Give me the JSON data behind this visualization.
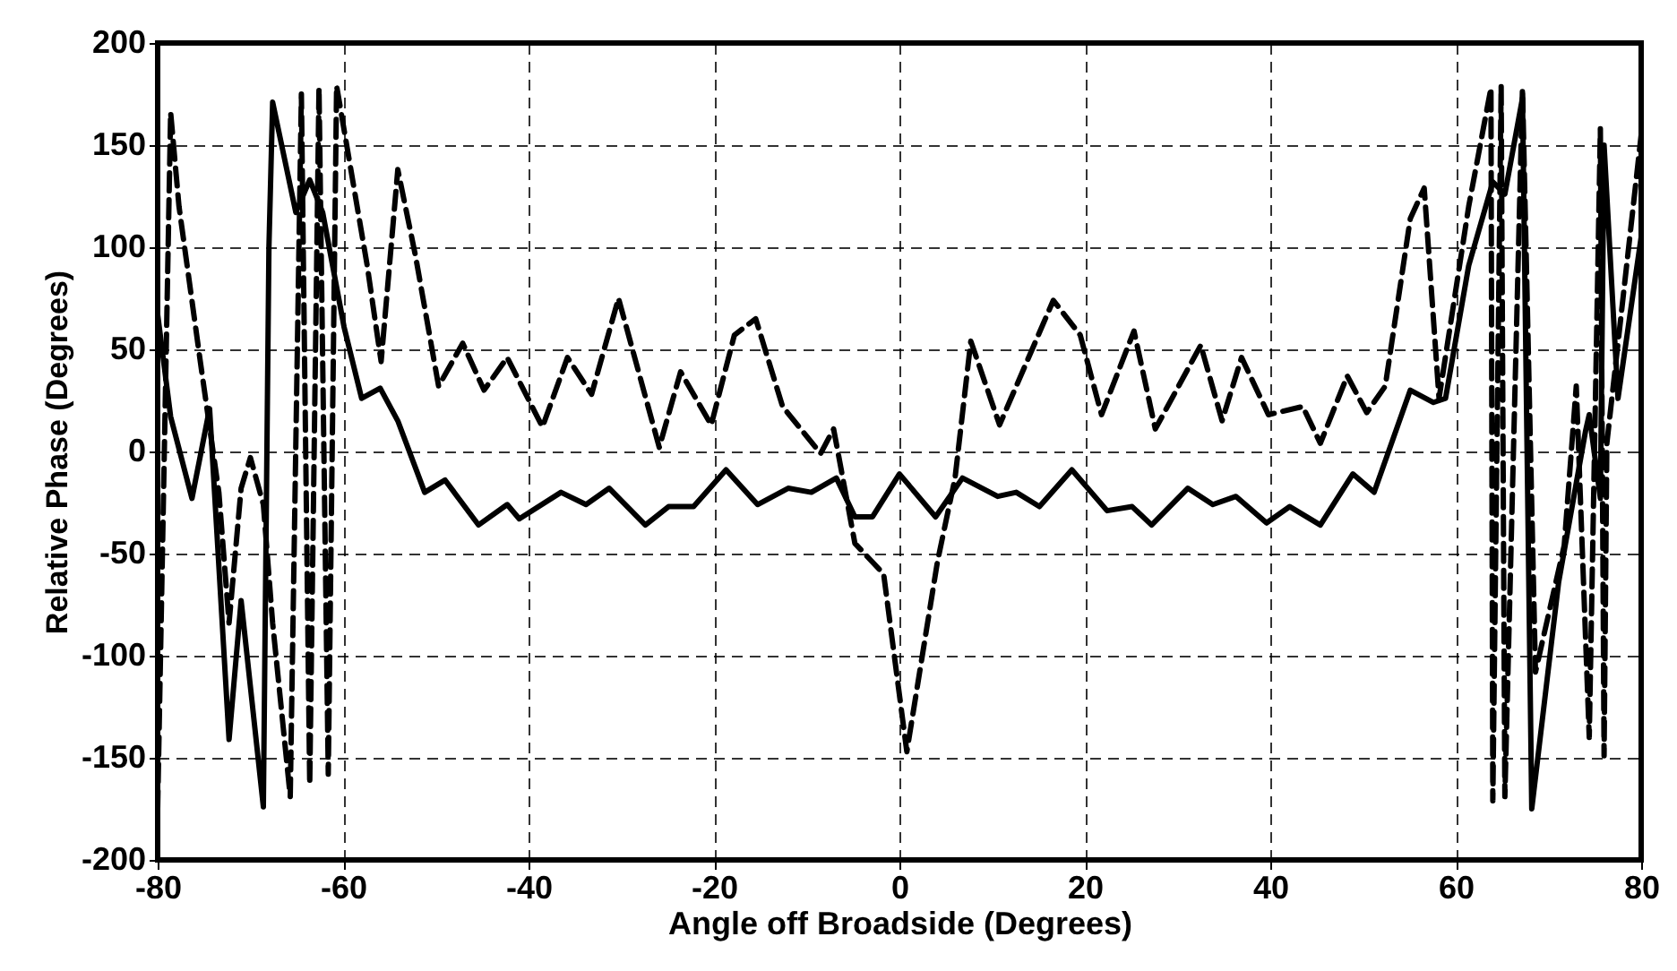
{
  "chart_data": {
    "type": "line",
    "xlabel": "Angle off Broadside (Degrees)",
    "ylabel": "Relative Phase (Degrees)",
    "xlim": [
      -80,
      80
    ],
    "ylim": [
      -200,
      200
    ],
    "xticks": [
      -80,
      -60,
      -40,
      -20,
      0,
      20,
      40,
      60,
      80
    ],
    "yticks": [
      -200,
      -150,
      -100,
      -50,
      0,
      50,
      100,
      150,
      200
    ],
    "grid": true,
    "series": [
      {
        "color": "#000000",
        "line_style": "solid",
        "x": [
          -80,
          -78.6,
          -76.3,
          -74.4,
          -72.3,
          -71,
          -68.6,
          -68,
          -67.6,
          -65.1,
          -63.6,
          -62.2,
          -59.9,
          -58,
          -56,
          -54.1,
          -51.2,
          -49,
          -45.4,
          -42.3,
          -41,
          -36.5,
          -33.8,
          -31.3,
          -27.4,
          -24.9,
          -22.2,
          -18.7,
          -15.3,
          -12,
          -9.5,
          -6.8,
          -4.8,
          -2.9,
          0,
          3.9,
          6.8,
          10.6,
          12.6,
          15.1,
          18.6,
          22.4,
          25.1,
          27.2,
          31.1,
          33.8,
          36.3,
          39.6,
          42.1,
          45.4,
          48.9,
          51.2,
          55.1,
          57.6,
          58.9,
          61.4,
          64,
          65.3,
          67.2,
          68.2,
          71.1,
          74,
          74.4,
          75.6,
          76,
          77.5,
          80
        ],
        "values": [
          67,
          17,
          -23,
          21,
          -141,
          -73,
          -174,
          100,
          171,
          117,
          133,
          117,
          61,
          26,
          31,
          15,
          -20,
          -14,
          -36,
          -26,
          -33,
          -20,
          -26,
          -18,
          -36,
          -27,
          -27,
          -9,
          -26,
          -18,
          -20,
          -13,
          -32,
          -32,
          -11,
          -32,
          -13,
          -22,
          -20,
          -27,
          -9,
          -29,
          -27,
          -36,
          -18,
          -26,
          -22,
          -35,
          -27,
          -36,
          -11,
          -20,
          30,
          24,
          26,
          91,
          132,
          126,
          173,
          -175,
          -64,
          10,
          18,
          -23,
          150,
          26,
          105
        ]
      },
      {
        "color": "#000000",
        "line_style": "dashed",
        "x": [
          -80,
          -78.6,
          -77.7,
          -75.4,
          -73.4,
          -72.3,
          -71,
          -70,
          -68.6,
          -67.6,
          -65.7,
          -64.5,
          -63.6,
          -62.6,
          -61.6,
          -60.7,
          -57.4,
          -55.9,
          -54.1,
          -52.2,
          -49.7,
          -47.1,
          -44.8,
          -42.3,
          -38.5,
          -35.8,
          -33.2,
          -30.3,
          -25.9,
          -23.6,
          -20.3,
          -17.8,
          -15.5,
          -12.6,
          -8.5,
          -7.1,
          -6.6,
          -4.8,
          -1.7,
          0.8,
          4.1,
          6,
          7.7,
          10.8,
          16.6,
          19.5,
          21.8,
          25.3,
          27.6,
          32.5,
          34.8,
          36.9,
          39.8,
          43.5,
          45.4,
          48.3,
          50.4,
          52.4,
          55.1,
          56.6,
          58.2,
          61.4,
          63.8,
          64,
          64.9,
          65.3,
          67.2,
          68.6,
          71.7,
          73,
          74.4,
          75.6,
          76,
          76.3,
          80
        ],
        "values": [
          -175,
          166,
          120,
          44,
          -20,
          -84,
          -18,
          -3,
          -26,
          -84,
          -169,
          175,
          -163,
          178,
          -158,
          179,
          91,
          44,
          138,
          96,
          32,
          53,
          30,
          46,
          12,
          46,
          28,
          75,
          2,
          39,
          13,
          57,
          65,
          22,
          -1,
          11,
          -1,
          -45,
          -60,
          -147,
          -54,
          -13,
          54,
          13,
          74,
          57,
          18,
          59,
          11,
          52,
          15,
          46,
          18,
          22,
          4,
          37,
          19,
          32,
          114,
          129,
          26,
          120,
          178,
          -171,
          179,
          -169,
          178,
          -108,
          -46,
          32,
          -140,
          158,
          -149,
          4,
          155
        ]
      }
    ]
  }
}
